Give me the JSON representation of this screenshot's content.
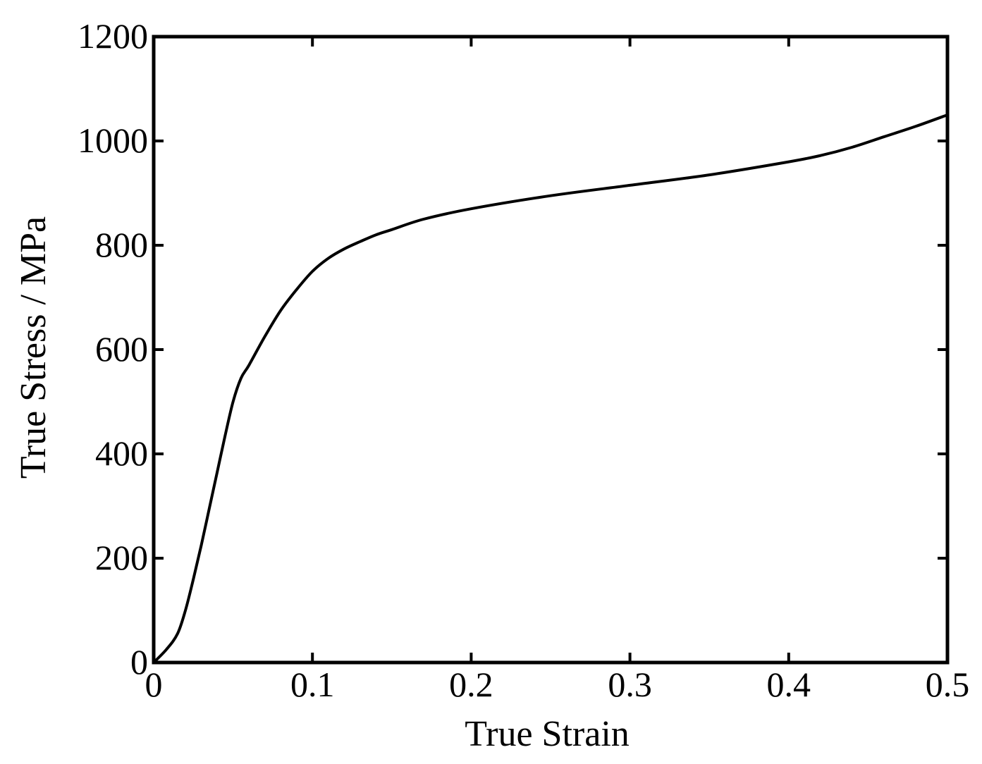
{
  "chart_data": {
    "type": "line",
    "title": "",
    "xlabel": "True Strain",
    "ylabel": "True Stress / MPa",
    "xlim": [
      0,
      0.5
    ],
    "ylim": [
      0,
      1200
    ],
    "grid": false,
    "legend": "none",
    "line_color": "#000000",
    "x_ticks": [
      0,
      0.1,
      0.2,
      0.3,
      0.4,
      0.5
    ],
    "x_tick_labels": [
      "0",
      "0.1",
      "0.2",
      "0.3",
      "0.4",
      "0.5"
    ],
    "y_ticks": [
      0,
      200,
      400,
      600,
      800,
      1000,
      1200
    ],
    "y_tick_labels": [
      "0",
      "200",
      "400",
      "600",
      "800",
      "1000",
      "1200"
    ],
    "series": [
      {
        "x": [
          0,
          0.008,
          0.015,
          0.02,
          0.025,
          0.03,
          0.035,
          0.04,
          0.045,
          0.05,
          0.055,
          0.06,
          0.07,
          0.08,
          0.09,
          0.1,
          0.11,
          0.12,
          0.13,
          0.14,
          0.15,
          0.17,
          0.2,
          0.25,
          0.3,
          0.35,
          0.4,
          0.42,
          0.44,
          0.46,
          0.48,
          0.5
        ],
        "y": [
          0,
          25,
          55,
          100,
          160,
          225,
          295,
          365,
          435,
          500,
          545,
          570,
          625,
          675,
          715,
          750,
          775,
          793,
          807,
          820,
          830,
          850,
          870,
          895,
          915,
          935,
          960,
          972,
          988,
          1008,
          1028,
          1050
        ]
      }
    ]
  }
}
